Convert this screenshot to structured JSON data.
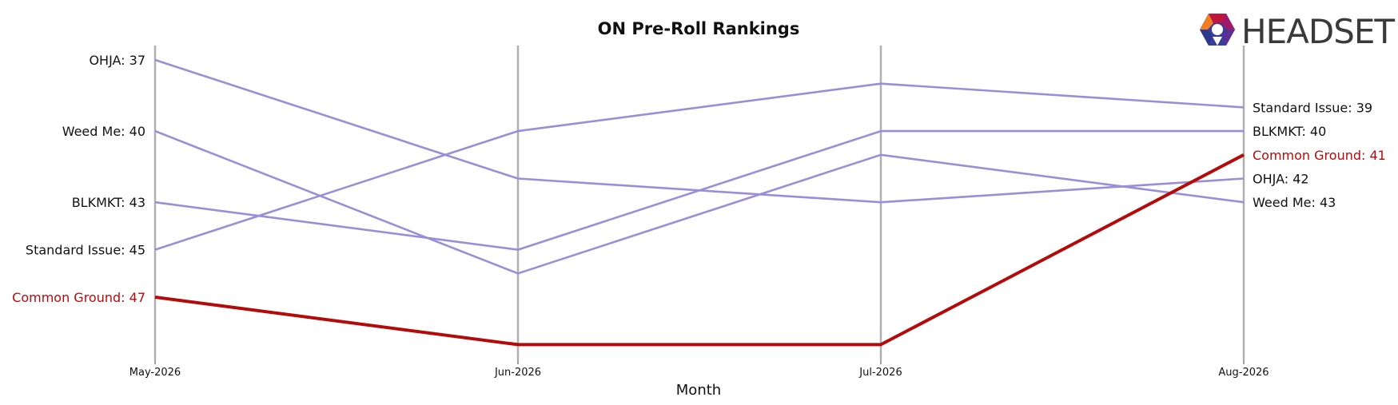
{
  "chart_data": {
    "type": "line",
    "title": "ON Pre-Roll Rankings",
    "xlabel": "Month",
    "ylabel": "",
    "categories": [
      "May-2026",
      "Jun-2026",
      "Jul-2026",
      "Aug-2026"
    ],
    "ylim": [
      36,
      50
    ],
    "y_inverted": true,
    "grid": "vertical lines at each month",
    "highlight_series": "Common Ground",
    "series": [
      {
        "name": "OHJA",
        "values": [
          37,
          42,
          43,
          42
        ]
      },
      {
        "name": "Weed Me",
        "values": [
          40,
          46,
          41,
          43
        ]
      },
      {
        "name": "BLKMKT",
        "values": [
          43,
          45,
          40,
          40
        ]
      },
      {
        "name": "Standard Issue",
        "values": [
          45,
          40,
          38,
          39
        ]
      },
      {
        "name": "Common Ground",
        "values": [
          47,
          49,
          49,
          41
        ]
      }
    ],
    "left_labels": [
      {
        "text": "OHJA: 37",
        "series": "OHJA"
      },
      {
        "text": "Weed Me: 40",
        "series": "Weed Me"
      },
      {
        "text": "BLKMKT: 43",
        "series": "BLKMKT"
      },
      {
        "text": "Standard Issue: 45",
        "series": "Standard Issue"
      },
      {
        "text": "Common Ground: 47",
        "series": "Common Ground"
      }
    ],
    "right_labels": [
      {
        "text": "Standard Issue: 39",
        "series": "Standard Issue"
      },
      {
        "text": "BLKMKT: 40",
        "series": "BLKMKT"
      },
      {
        "text": "Common Ground: 41",
        "series": "Common Ground"
      },
      {
        "text": "OHJA: 42",
        "series": "OHJA"
      },
      {
        "text": "Weed Me: 43",
        "series": "Weed Me"
      }
    ],
    "colors": {
      "default": "#9b8ed8",
      "highlight": "#b50a0a",
      "grid": "#b0b0b0"
    }
  },
  "logo": {
    "text": "HEADSET"
  }
}
